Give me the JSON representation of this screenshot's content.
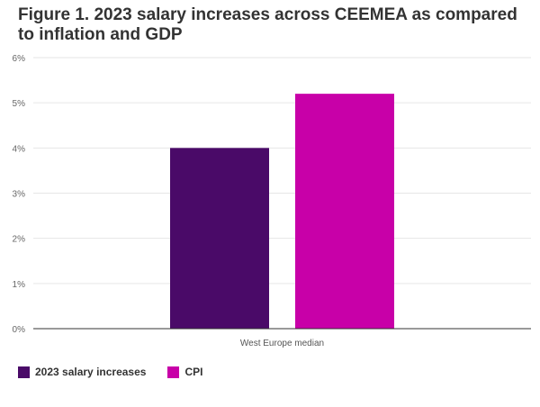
{
  "chart_data": {
    "type": "bar",
    "title": "Figure 1. 2023 salary increases across CEEMEA as compared to inflation and GDP",
    "categories": [
      "West Europe median"
    ],
    "series": [
      {
        "name": "2023 salary increases",
        "values": [
          4.0
        ],
        "color": "#4a0a68"
      },
      {
        "name": "CPI",
        "values": [
          5.2
        ],
        "color": "#c800a8"
      }
    ],
    "xlabel": "",
    "ylabel": "",
    "ylim": [
      0,
      6
    ],
    "yticks": [
      "0%",
      "1%",
      "2%",
      "3%",
      "4%",
      "5%",
      "6%"
    ],
    "grid": true,
    "legend_position": "bottom-left"
  }
}
